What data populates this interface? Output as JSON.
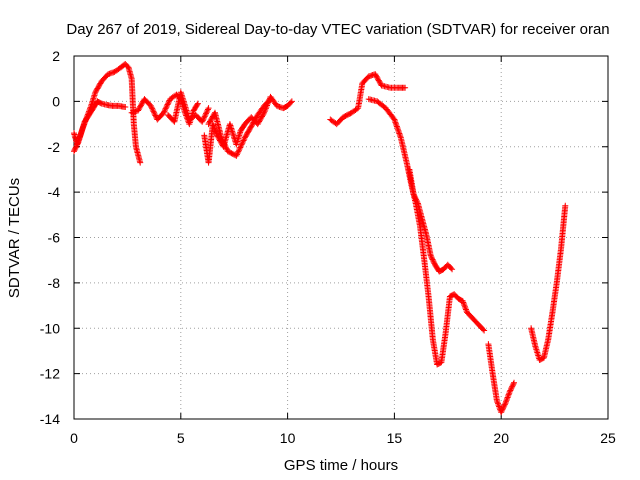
{
  "chart_data": {
    "type": "scatter",
    "title": "Day 267 of 2019, Sidereal Day-to-day VTEC variation (SDTVAR) for receiver oran",
    "xlabel": "GPS time / hours",
    "ylabel": "SDTVAR / TECUs",
    "xlim": [
      0,
      25
    ],
    "ylim": [
      -14,
      2
    ],
    "xticks": [
      0,
      5,
      10,
      15,
      20,
      25
    ],
    "yticks": [
      -14,
      -12,
      -10,
      -8,
      -6,
      -4,
      -2,
      0,
      2
    ],
    "grid": true,
    "marker": "plus",
    "marker_color": "#ff0000",
    "series": [
      {
        "segments": [
          [
            [
              0.0,
              -1.4
            ],
            [
              0.15,
              -1.9
            ],
            [
              0.3,
              -1.5
            ],
            [
              0.5,
              -0.9
            ],
            [
              0.7,
              -0.6
            ],
            [
              0.9,
              -0.3
            ],
            [
              1.1,
              0.0
            ],
            [
              1.3,
              -0.1
            ],
            [
              1.5,
              -0.15
            ],
            [
              1.8,
              -0.2
            ],
            [
              2.1,
              -0.2
            ],
            [
              2.4,
              -0.25
            ]
          ],
          [
            [
              0.0,
              -2.2
            ],
            [
              0.2,
              -1.8
            ],
            [
              0.4,
              -1.2
            ],
            [
              0.6,
              -0.7
            ],
            [
              0.8,
              -0.2
            ],
            [
              1.0,
              0.4
            ],
            [
              1.3,
              0.9
            ],
            [
              1.6,
              1.2
            ],
            [
              1.9,
              1.3
            ],
            [
              2.2,
              1.5
            ],
            [
              2.4,
              1.65
            ],
            [
              2.55,
              1.5
            ],
            [
              2.7,
              1.0
            ],
            [
              2.75,
              0.0
            ],
            [
              2.8,
              -1.0
            ],
            [
              2.9,
              -2.0
            ],
            [
              3.1,
              -2.7
            ]
          ],
          [
            [
              2.7,
              -0.5
            ],
            [
              3.0,
              -0.4
            ],
            [
              3.3,
              0.1
            ],
            [
              3.6,
              -0.2
            ],
            [
              3.9,
              -0.8
            ],
            [
              4.2,
              -0.5
            ],
            [
              4.5,
              0.1
            ],
            [
              4.8,
              0.3
            ],
            [
              5.0,
              0.1
            ],
            [
              5.2,
              -0.5
            ],
            [
              5.4,
              -1.0
            ],
            [
              5.6,
              -0.4
            ],
            [
              5.8,
              -0.1
            ]
          ],
          [
            [
              4.4,
              -0.6
            ],
            [
              4.7,
              -0.9
            ],
            [
              5.0,
              0.4
            ],
            [
              5.2,
              -0.2
            ],
            [
              5.4,
              -0.8
            ],
            [
              5.7,
              -0.6
            ],
            [
              6.0,
              -0.9
            ],
            [
              6.3,
              -0.3
            ]
          ],
          [
            [
              6.1,
              -1.5
            ],
            [
              6.3,
              -2.7
            ],
            [
              6.5,
              -1.0
            ],
            [
              6.7,
              -1.5
            ],
            [
              7.0,
              -2.0
            ],
            [
              7.3,
              -1.0
            ],
            [
              7.6,
              -1.9
            ],
            [
              7.8,
              -1.3
            ],
            [
              8.0,
              -1.0
            ],
            [
              8.3,
              -0.7
            ],
            [
              8.6,
              -1.0
            ],
            [
              8.9,
              -0.5
            ],
            [
              9.2,
              0.2
            ],
            [
              9.5,
              -0.2
            ],
            [
              9.8,
              -0.3
            ],
            [
              10.0,
              -0.2
            ],
            [
              10.2,
              0.0
            ]
          ],
          [
            [
              6.3,
              -1.0
            ],
            [
              6.6,
              -0.5
            ],
            [
              6.9,
              -1.6
            ],
            [
              7.2,
              -2.2
            ],
            [
              7.6,
              -2.4
            ],
            [
              8.0,
              -1.6
            ],
            [
              8.3,
              -1.1
            ],
            [
              8.6,
              -0.6
            ],
            [
              8.9,
              -0.2
            ],
            [
              9.2,
              0.1
            ]
          ],
          [
            [
              12.0,
              -0.8
            ],
            [
              12.3,
              -1.0
            ],
            [
              12.6,
              -0.7
            ],
            [
              13.0,
              -0.5
            ],
            [
              13.3,
              -0.3
            ],
            [
              13.5,
              0.8
            ],
            [
              13.8,
              1.1
            ],
            [
              14.1,
              1.2
            ],
            [
              14.4,
              0.7
            ],
            [
              14.8,
              0.6
            ],
            [
              15.2,
              0.6
            ],
            [
              15.5,
              0.6
            ]
          ],
          [
            [
              13.8,
              0.1
            ],
            [
              14.2,
              0.0
            ],
            [
              14.6,
              -0.3
            ],
            [
              15.0,
              -0.8
            ],
            [
              15.3,
              -1.6
            ],
            [
              15.6,
              -2.8
            ],
            [
              15.8,
              -3.7
            ],
            [
              16.0,
              -4.5
            ],
            [
              16.2,
              -5.5
            ],
            [
              16.4,
              -7.0
            ],
            [
              16.6,
              -8.6
            ],
            [
              16.8,
              -10.5
            ],
            [
              17.0,
              -11.6
            ],
            [
              17.2,
              -11.5
            ],
            [
              17.4,
              -10.2
            ],
            [
              17.6,
              -8.6
            ],
            [
              17.8,
              -8.5
            ],
            [
              18.0,
              -8.7
            ],
            [
              18.2,
              -8.8
            ],
            [
              18.4,
              -9.3
            ],
            [
              18.7,
              -9.6
            ],
            [
              18.9,
              -9.8
            ],
            [
              19.2,
              -10.1
            ]
          ],
          [
            [
              15.7,
              -3.0
            ],
            [
              15.9,
              -4.1
            ],
            [
              16.1,
              -4.5
            ],
            [
              16.3,
              -5.2
            ],
            [
              16.5,
              -5.9
            ],
            [
              16.7,
              -6.8
            ],
            [
              16.9,
              -7.2
            ],
            [
              17.1,
              -7.5
            ],
            [
              17.3,
              -7.4
            ],
            [
              17.5,
              -7.2
            ],
            [
              17.7,
              -7.4
            ]
          ],
          [
            [
              19.4,
              -10.7
            ],
            [
              19.6,
              -12.0
            ],
            [
              19.8,
              -13.2
            ],
            [
              20.0,
              -13.7
            ],
            [
              20.2,
              -13.3
            ],
            [
              20.4,
              -12.8
            ],
            [
              20.6,
              -12.4
            ]
          ],
          [
            [
              21.4,
              -10.0
            ],
            [
              21.6,
              -10.8
            ],
            [
              21.8,
              -11.4
            ],
            [
              22.0,
              -11.3
            ],
            [
              22.2,
              -10.5
            ],
            [
              22.4,
              -9.3
            ],
            [
              22.6,
              -8.0
            ],
            [
              22.8,
              -6.5
            ],
            [
              23.0,
              -4.6
            ]
          ]
        ]
      }
    ]
  }
}
